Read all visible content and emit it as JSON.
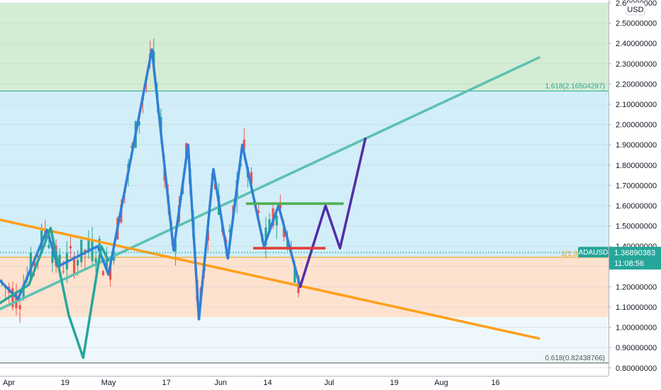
{
  "currency_badge": "USD",
  "chart_data": {
    "type": "candlestick",
    "symbol": "ADAUSD",
    "y_axis": {
      "ylim": [
        0.76,
        2.6
      ],
      "scale": "linear",
      "tick_values": [
        2.6,
        2.5,
        2.4,
        2.3,
        2.2,
        2.1,
        2.0,
        1.9,
        1.8,
        1.7,
        1.6,
        1.5,
        1.4,
        1.3,
        1.2,
        1.1,
        1.0,
        0.9,
        0.8
      ],
      "tick_labels": [
        "2.60000000",
        "2.50000000",
        "2.40000000",
        "2.30000000",
        "2.20000000",
        "2.10000000",
        "2.00000000",
        "1.90000000",
        "1.80000000",
        "1.70000000",
        "1.60000000",
        "1.50000000",
        "1.40000000",
        "1.30000000",
        "1.20000000",
        "1.10000000",
        "1.00000000",
        "0.90000000",
        "0.80000000"
      ]
    },
    "x_axis": {
      "range": [
        "2021-04-01",
        "2021-08-28"
      ],
      "ticks": [
        {
          "date": "2021-04-01",
          "label": "Apr"
        },
        {
          "date": "2021-04-19",
          "label": "19"
        },
        {
          "date": "2021-05-01",
          "label": "May"
        },
        {
          "date": "2021-05-17",
          "label": "17"
        },
        {
          "date": "2021-06-01",
          "label": "Jun"
        },
        {
          "date": "2021-06-14",
          "label": "14"
        },
        {
          "date": "2021-07-01",
          "label": "Jul"
        },
        {
          "date": "2021-07-19",
          "label": "19"
        },
        {
          "date": "2021-08-01",
          "label": "Aug"
        },
        {
          "date": "2021-08-16",
          "label": "16"
        }
      ]
    },
    "last_price": {
      "value": 1.36890383,
      "label": "1.36890383",
      "countdown": "11:08:56",
      "tag": "ADAUSD"
    },
    "fib_levels": [
      {
        "label": "1.618(2.16504297)",
        "value": 2.16504297,
        "color": "#26a69a"
      },
      {
        "label": "1(1.3",
        "value": 1.345,
        "color": "#ff9800"
      },
      {
        "label": "0.618(0.82438766)",
        "value": 0.82438766,
        "color": "#555555"
      }
    ],
    "fib_zones": [
      {
        "from": 2.165,
        "to": 2.6,
        "color": "#d4ecd3"
      },
      {
        "from": 1.345,
        "to": 2.165,
        "color": "#d2eef8"
      },
      {
        "from": 1.05,
        "to": 1.345,
        "color": "#fde2cf"
      },
      {
        "from": 0.825,
        "to": 1.05,
        "color": "#eef8fc"
      }
    ],
    "trendlines": [
      {
        "name": "teal",
        "color": "#5cc1b2",
        "points": [
          [
            "2021-04-01",
            1.09
          ],
          [
            "2021-08-28",
            2.33
          ]
        ]
      },
      {
        "name": "orange",
        "color": "#ff9f1a",
        "points": [
          [
            "2021-04-01",
            1.53
          ],
          [
            "2021-08-28",
            0.945
          ]
        ]
      }
    ],
    "horizontal_lines": [
      {
        "name": "green",
        "color": "#4caf50",
        "from": "2021-06-08",
        "to": "2021-07-05",
        "y": 1.61
      },
      {
        "name": "red",
        "color": "#e53935",
        "from": "2021-06-10",
        "to": "2021-06-30",
        "y": 1.39
      }
    ],
    "wave_paths": [
      {
        "name": "blue",
        "color": "#2f7fd8",
        "points": [
          [
            "2021-04-01",
            1.23
          ],
          [
            "2021-04-06",
            1.14
          ],
          [
            "2021-04-14",
            1.48
          ],
          [
            "2021-04-17",
            1.3
          ],
          [
            "2021-04-28",
            1.4
          ],
          [
            "2021-05-01",
            1.26
          ],
          [
            "2021-05-13",
            2.37
          ],
          [
            "2021-05-19",
            1.38
          ],
          [
            "2021-05-23",
            1.9
          ],
          [
            "2021-05-26",
            1.04
          ],
          [
            "2021-05-30",
            1.78
          ],
          [
            "2021-06-03",
            1.34
          ],
          [
            "2021-06-07",
            1.9
          ],
          [
            "2021-06-13",
            1.4
          ],
          [
            "2021-06-17",
            1.6
          ],
          [
            "2021-06-23",
            1.2
          ]
        ]
      },
      {
        "name": "teal-wave",
        "color": "#26a69a",
        "points": [
          [
            "2021-04-01",
            1.12
          ],
          [
            "2021-04-09",
            1.21
          ],
          [
            "2021-04-15",
            1.49
          ],
          [
            "2021-04-20",
            1.06
          ],
          [
            "2021-04-24",
            0.85
          ],
          [
            "2021-04-29",
            1.4
          ],
          [
            "2021-05-01",
            1.33
          ]
        ]
      },
      {
        "name": "purple",
        "color": "#512da8",
        "points": [
          [
            "2021-06-23",
            1.2
          ],
          [
            "2021-06-30",
            1.6
          ],
          [
            "2021-07-04",
            1.39
          ],
          [
            "2021-07-11",
            1.93
          ]
        ]
      }
    ],
    "candles_note": "ADAUSD daily candles Apr–Jun 2021"
  }
}
